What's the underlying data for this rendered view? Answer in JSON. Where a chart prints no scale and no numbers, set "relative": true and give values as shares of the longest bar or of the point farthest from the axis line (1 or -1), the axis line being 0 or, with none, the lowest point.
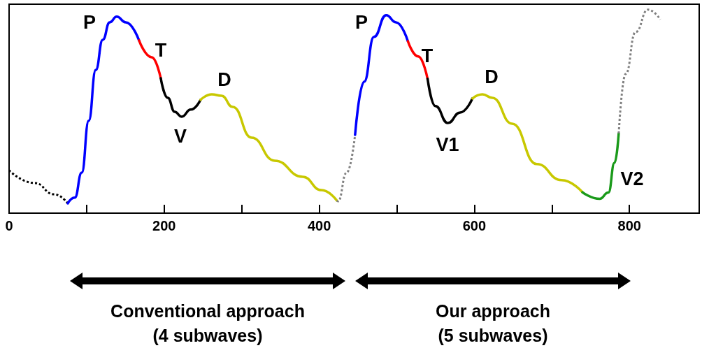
{
  "chart_data": {
    "type": "line",
    "relative": true,
    "xlim": [
      0,
      890
    ],
    "xticks": [
      0,
      {
        "value": 100,
        "label": null
      },
      200,
      {
        "value": 300,
        "label": null
      },
      400,
      {
        "value": 500,
        "label": null
      },
      600,
      {
        "value": 700,
        "label": null
      },
      800
    ],
    "grid": false,
    "marker": "none",
    "line_style": "solid",
    "series": [
      {
        "color": "#000000",
        "line_style": "dotted",
        "x": [
          0,
          33,
          58,
          75.7
        ],
        "values": [
          0.21,
          0.148,
          0.093,
          0.048
        ]
      },
      {
        "color": "#0000ff",
        "x": [
          75.7,
          84.7,
          93.7,
          102.7,
          111.8,
          120.8,
          129.8,
          138.8,
          150.5,
          167.6
        ],
        "values": [
          0.048,
          0.076,
          0.199,
          0.454,
          0.704,
          0.852,
          0.938,
          0.966,
          0.938,
          0.849
        ]
      },
      {
        "color": "#ff0000",
        "x": [
          167.6,
          183.9,
          195.6
        ],
        "values": [
          0.849,
          0.766,
          0.663
        ]
      },
      {
        "color": "#000000",
        "x": [
          195.6,
          204.6,
          213.6,
          222.6,
          234.3,
          247
        ],
        "values": [
          0.663,
          0.567,
          0.498,
          0.474,
          0.509,
          0.557
        ]
      },
      {
        "color": "#c8c800",
        "x": [
          247,
          261.4,
          274,
          288.4,
          312.8,
          342.5,
          378.5,
          402.9,
          422.7
        ],
        "values": [
          0.557,
          0.584,
          0.577,
          0.522,
          0.371,
          0.258,
          0.179,
          0.113,
          0.062
        ]
      },
      {
        "color": "#808080",
        "line_style": "dotted",
        "x": [
          422.7,
          424.2,
          435.3,
          446.2
        ],
        "values": [
          0.062,
          0.058,
          0.199,
          0.385
        ]
      },
      {
        "color": "#0000ff",
        "x": [
          446.2,
          457.9,
          470.5,
          486.3,
          499,
          514.3
        ],
        "values": [
          0.385,
          0.646,
          0.866,
          0.973,
          0.938,
          0.845
        ]
      },
      {
        "color": "#ff0000",
        "x": [
          514.3,
          527.6,
          539.7
        ],
        "values": [
          0.845,
          0.77,
          0.66
        ]
      },
      {
        "color": "#000000",
        "x": [
          539.7,
          549.8,
          565.8,
          581.8,
          597.6
        ],
        "values": [
          0.66,
          0.526,
          0.443,
          0.495,
          0.564
        ]
      },
      {
        "color": "#c8c800",
        "x": [
          597.6,
          610.5,
          623.2,
          648.7,
          680.5,
          712.4,
          739.4
        ],
        "values": [
          0.564,
          0.584,
          0.567,
          0.44,
          0.241,
          0.162,
          0.103
        ]
      },
      {
        "color": "#1a9a1a",
        "x": [
          739.4,
          761.6,
          772.9,
          780.8,
          786.2
        ],
        "values": [
          0.103,
          0.07,
          0.101,
          0.247,
          0.392
        ]
      },
      {
        "color": "#808080",
        "line_style": "dotted",
        "x": [
          786.2,
          795.2,
          808,
          823.9,
          839.8
        ],
        "values": [
          0.392,
          0.684,
          0.89,
          1.0,
          0.952
        ]
      }
    ],
    "annotations": [
      "P",
      "T",
      "V",
      "D",
      "P",
      "T",
      "V1",
      "D",
      "V2",
      "Conventional approach\n(4 subwaves)",
      "Our approach\n(5 subwaves)"
    ]
  }
}
